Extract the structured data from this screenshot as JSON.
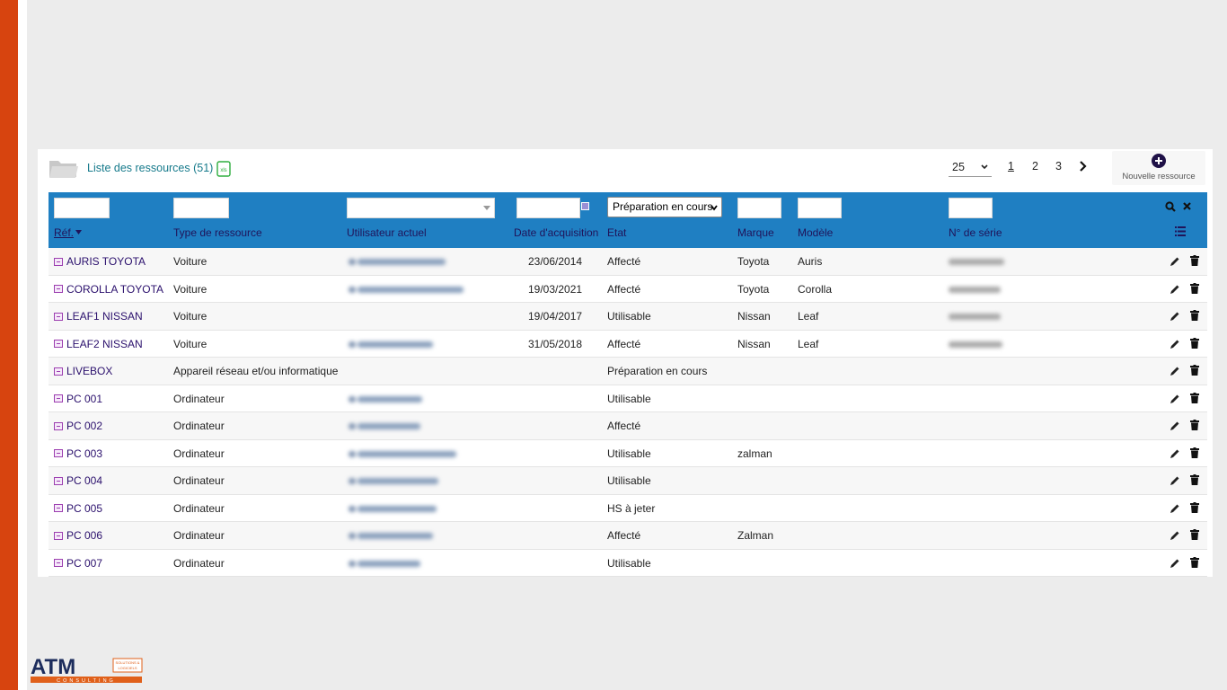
{
  "colors": {
    "sidebar": "#d7440f",
    "header_bg": "#1f7fc2",
    "link": "#2a0f6c",
    "title": "#167a8b"
  },
  "list": {
    "title": "Liste des ressources (51)",
    "export_icon": "xls-export-icon"
  },
  "pagination": {
    "per_page": "25",
    "pages": [
      "1",
      "2",
      "3"
    ],
    "current": "1"
  },
  "new_button": {
    "label": "Nouvelle ressource",
    "icon": "plus-circle-icon"
  },
  "filters": {
    "state_selected": "Préparation en cours"
  },
  "columns": [
    "Réf.",
    "Type de ressource",
    "Utilisateur actuel",
    "Date d'acquisition",
    "Etat",
    "Marque",
    "Modèle",
    "N° de série"
  ],
  "rows": [
    {
      "ref": "AURIS TOYOTA",
      "type": "Voiture",
      "date": "23/06/2014",
      "etat": "Affecté",
      "marque": "Toyota",
      "modele": "Auris"
    },
    {
      "ref": "COROLLA TOYOTA",
      "type": "Voiture",
      "date": "19/03/2021",
      "etat": "Affecté",
      "marque": "Toyota",
      "modele": "Corolla"
    },
    {
      "ref": "LEAF1 NISSAN",
      "type": "Voiture",
      "date": "19/04/2017",
      "etat": "Utilisable",
      "marque": "Nissan",
      "modele": "Leaf"
    },
    {
      "ref": "LEAF2 NISSAN",
      "type": "Voiture",
      "date": "31/05/2018",
      "etat": "Affecté",
      "marque": "Nissan",
      "modele": "Leaf"
    },
    {
      "ref": "LIVEBOX",
      "type": "Appareil réseau et/ou informatique",
      "date": "",
      "etat": "Préparation en cours",
      "marque": "",
      "modele": ""
    },
    {
      "ref": "PC 001",
      "type": "Ordinateur",
      "date": "",
      "etat": "Utilisable",
      "marque": "",
      "modele": ""
    },
    {
      "ref": "PC 002",
      "type": "Ordinateur",
      "date": "",
      "etat": "Affecté",
      "marque": "",
      "modele": ""
    },
    {
      "ref": "PC 003",
      "type": "Ordinateur",
      "date": "",
      "etat": "Utilisable",
      "marque": "zalman",
      "modele": ""
    },
    {
      "ref": "PC 004",
      "type": "Ordinateur",
      "date": "",
      "etat": "Utilisable",
      "marque": "",
      "modele": ""
    },
    {
      "ref": "PC 005",
      "type": "Ordinateur",
      "date": "",
      "etat": "HS à jeter",
      "marque": "",
      "modele": ""
    },
    {
      "ref": "PC 006",
      "type": "Ordinateur",
      "date": "",
      "etat": "Affecté",
      "marque": "Zalman",
      "modele": ""
    },
    {
      "ref": "PC 007",
      "type": "Ordinateur",
      "date": "",
      "etat": "Utilisable",
      "marque": "",
      "modele": ""
    }
  ],
  "logo": {
    "text": "ATM",
    "tag": "SOLUTIONS & LOGICIELS",
    "sub": "CONSULTING"
  }
}
